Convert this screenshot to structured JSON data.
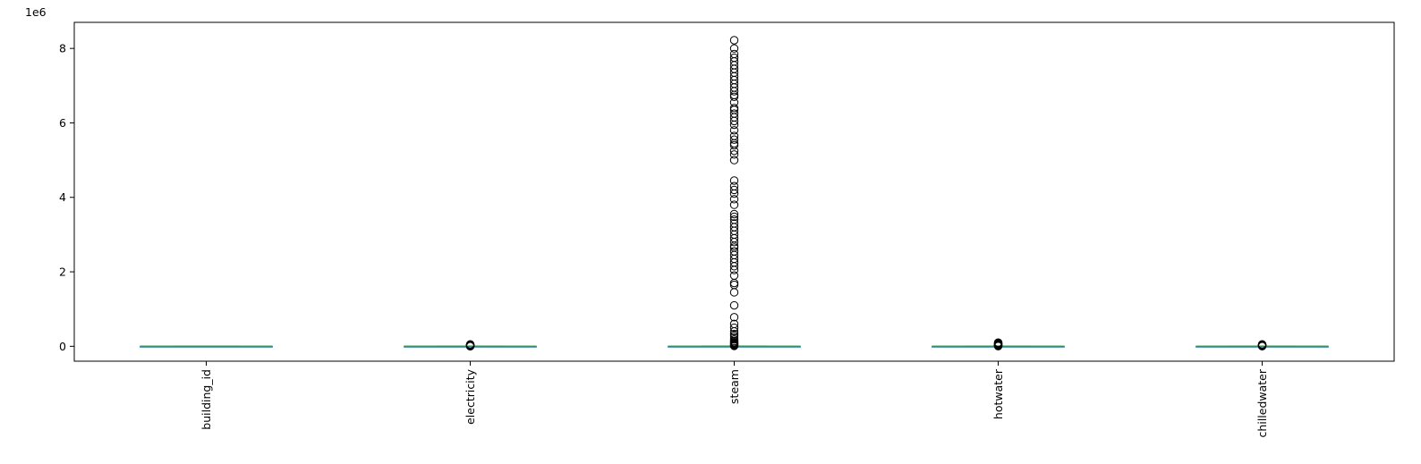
{
  "chart_data": {
    "type": "box",
    "title": "",
    "xlabel": "",
    "ylabel": "",
    "y_offset_label": "1e6",
    "y_scale_multiplier": 1000000,
    "ylim": [
      -400000,
      8700000
    ],
    "yticks": [
      0,
      2000000,
      4000000,
      6000000,
      8000000
    ],
    "ytick_labels": [
      "0",
      "2",
      "4",
      "6",
      "8"
    ],
    "grid": false,
    "legend": "none",
    "categories": [
      "building_id",
      "electricity",
      "steam",
      "hotwater",
      "chilledwater"
    ],
    "median_color": "#2ca02c",
    "box_color": "#1f77b4",
    "boxes": [
      {
        "name": "building_id",
        "whislo": 0,
        "q1": 0,
        "median": 0,
        "q3": 0,
        "whishi": 1448,
        "fliers": []
      },
      {
        "name": "electricity",
        "whislo": 0,
        "q1": 0,
        "median": 0,
        "q3": 0,
        "whishi": 1000,
        "fliers": [
          2000,
          5000,
          8000,
          12000,
          16000,
          20000,
          25000,
          30000,
          35000,
          40000,
          45000,
          50000
        ]
      },
      {
        "name": "steam",
        "whislo": 0,
        "q1": 0,
        "median": 0,
        "q3": 0,
        "whishi": 5000,
        "fliers": [
          10000,
          20000,
          35000,
          50000,
          70000,
          90000,
          110000,
          140000,
          180000,
          230000,
          280000,
          330000,
          400000,
          500000,
          600000,
          780000,
          1100000,
          1450000,
          1650000,
          1700000,
          1900000,
          2050000,
          2150000,
          2250000,
          2350000,
          2450000,
          2550000,
          2650000,
          2700000,
          2800000,
          2900000,
          3000000,
          3100000,
          3200000,
          3300000,
          3400000,
          3480000,
          3550000,
          3800000,
          3950000,
          4100000,
          4200000,
          4300000,
          4450000,
          5000000,
          5150000,
          5250000,
          5400000,
          5450000,
          5550000,
          5650000,
          5800000,
          5950000,
          6050000,
          6150000,
          6250000,
          6350000,
          6400000,
          6550000,
          6700000,
          6750000,
          6850000,
          6950000,
          7050000,
          7150000,
          7250000,
          7350000,
          7450000,
          7550000,
          7650000,
          7750000,
          7850000,
          8000000,
          8220000
        ]
      },
      {
        "name": "hotwater",
        "whislo": 0,
        "q1": 0,
        "median": 0,
        "q3": 0,
        "whishi": 3000,
        "fliers": [
          5000,
          10000,
          15000,
          20000,
          30000,
          40000,
          50000,
          60000,
          70000,
          80000,
          90000,
          100000
        ]
      },
      {
        "name": "chilledwater",
        "whislo": 0,
        "q1": 0,
        "median": 0,
        "q3": 0,
        "whishi": 2000,
        "fliers": [
          4000,
          8000,
          12000,
          16000,
          20000,
          25000,
          30000,
          35000,
          40000,
          45000,
          50000
        ]
      }
    ]
  }
}
